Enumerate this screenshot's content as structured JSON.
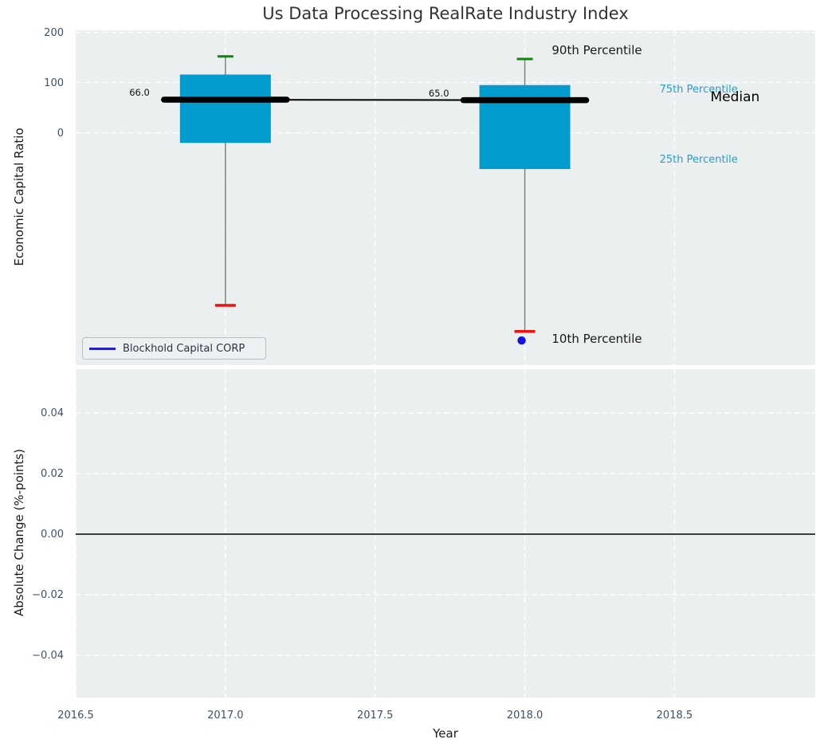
{
  "style": {
    "axes_bg": "#ebeff0",
    "grid_color": "#ffffff",
    "box_fill": "#049bce",
    "cap_green": "#0e850e",
    "cap_red": "#ee1111",
    "whisker_gray": "#7b7b7b",
    "company_line": "#000000",
    "outlier_blue": "#1414dd",
    "tick_color": "#3d506b",
    "zero_line": "#000000"
  },
  "chart_data": [
    {
      "type": "boxplot",
      "title": "Us Data Processing RealRate Industry Index",
      "ylabel": "Economic Capital Ratio",
      "xlabel": "",
      "xlim": [
        2016.5,
        2018.97
      ],
      "ylim": [
        -462,
        204
      ],
      "grid": true,
      "yticks": [
        {
          "v": 200,
          "label": "200"
        },
        {
          "v": 100,
          "label": "100"
        },
        {
          "v": 0,
          "label": "0"
        }
      ],
      "xgrid": [
        2017,
        2017.5,
        2018,
        2018.5
      ],
      "boxes": [
        {
          "x": 2017,
          "p10": -343,
          "q1": -20,
          "median": 66.0,
          "q3": 116,
          "p90": 152,
          "label": "66.0"
        },
        {
          "x": 2018,
          "p10": -395,
          "q1": -72,
          "median": 65.0,
          "q3": 95,
          "p90": 147,
          "label": "65.0"
        }
      ],
      "company_series": {
        "name": "Blockhold Capital CORP",
        "x": [
          2017,
          2018
        ],
        "values": [
          66.0,
          65.0
        ]
      },
      "outlier_point": {
        "x": 2018,
        "y": -413
      },
      "annotations": [
        {
          "text": "90th Percentile",
          "x": 2018.09,
          "y": 164,
          "color": "#1a1a1a",
          "size": 15
        },
        {
          "text": "75th Percentile",
          "x": 2018.45,
          "y": 85,
          "color": "#22a0d4",
          "size": 13
        },
        {
          "text": "Median",
          "x": 2018.62,
          "y": 70,
          "color": "#000000",
          "size": 17
        },
        {
          "text": "25th Percentile",
          "x": 2018.45,
          "y": -55,
          "color": "#22a0d4",
          "size": 13
        },
        {
          "text": "10th Percentile",
          "x": 2018.09,
          "y": -410,
          "color": "#1a1a1a",
          "size": 15
        }
      ],
      "legend": {
        "label": "Blockhold Capital CORP",
        "position": "lower left",
        "line_color": "#2222cc"
      }
    },
    {
      "type": "line",
      "title": "",
      "ylabel": "Absolute Change (%-points)",
      "xlabel": "Year",
      "xlim": [
        2016.5,
        2018.97
      ],
      "ylim": [
        -0.054,
        0.0545
      ],
      "grid": true,
      "yticks": [
        {
          "v": 0.04,
          "label": "0.04"
        },
        {
          "v": 0.02,
          "label": "0.02"
        },
        {
          "v": 0.0,
          "label": "0.00"
        },
        {
          "v": -0.02,
          "label": "−0.02"
        },
        {
          "v": -0.04,
          "label": "−0.04"
        }
      ],
      "xticks": [
        {
          "v": 2016.5,
          "label": "2016.5"
        },
        {
          "v": 2017.0,
          "label": "2017.0"
        },
        {
          "v": 2017.5,
          "label": "2017.5"
        },
        {
          "v": 2018.0,
          "label": "2018.0"
        },
        {
          "v": 2018.5,
          "label": "2018.5"
        }
      ],
      "zero_line_y": 0.0,
      "series": []
    }
  ]
}
